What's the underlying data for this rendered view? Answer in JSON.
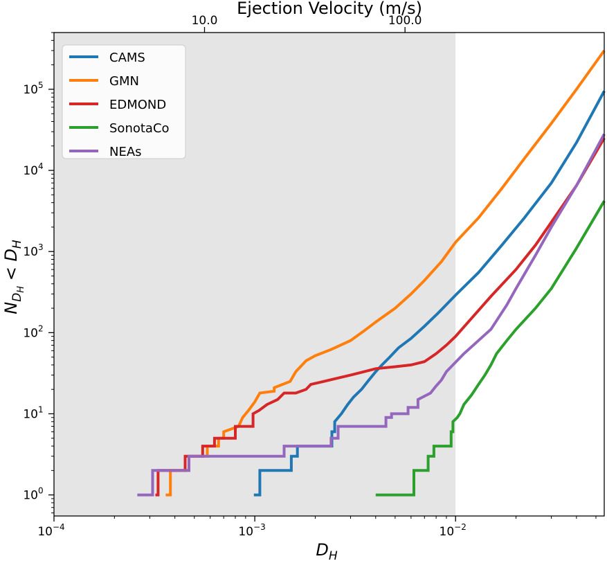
{
  "chart_data": {
    "type": "line",
    "xlabel": "D",
    "xlabel_sub": "H",
    "ylabel_main": "N",
    "ylabel_sub": "D",
    "ylabel_subsub": "H",
    "ylabel_rel": " < D",
    "ylabel_rel_sub": "H",
    "top_xlabel": "Ejection Velocity (m/s)",
    "x_scale": "log",
    "y_scale": "log",
    "xlim": [
      0.0001,
      0.055
    ],
    "ylim": [
      0.55,
      500000
    ],
    "x_ticks": [
      {
        "value": 0.0001,
        "base": "10",
        "exp": "−4"
      },
      {
        "value": 0.001,
        "base": "10",
        "exp": "−3"
      },
      {
        "value": 0.01,
        "base": "10",
        "exp": "−2"
      }
    ],
    "y_ticks": [
      {
        "value": 1,
        "base": "10",
        "exp": "0"
      },
      {
        "value": 10,
        "base": "10",
        "exp": "1"
      },
      {
        "value": 100,
        "base": "10",
        "exp": "2"
      },
      {
        "value": 1000,
        "base": "10",
        "exp": "3"
      },
      {
        "value": 10000,
        "base": "10",
        "exp": "4"
      },
      {
        "value": 100000,
        "base": "10",
        "exp": "5"
      }
    ],
    "top_ticks": [
      {
        "x_value": 0.000562,
        "label": "10.0"
      },
      {
        "x_value": 0.0056,
        "label": "100.0"
      }
    ],
    "shaded_region": {
      "x_from": 0.0001,
      "x_to": 0.01,
      "color": "#e5e5e5"
    },
    "legend_position": "upper left",
    "series": [
      {
        "name": "CAMS",
        "color": "#1f77b4",
        "points": [
          [
            0.00099,
            1
          ],
          [
            0.00106,
            1
          ],
          [
            0.00106,
            2
          ],
          [
            0.00152,
            2
          ],
          [
            0.00152,
            3
          ],
          [
            0.00163,
            3
          ],
          [
            0.00163,
            4
          ],
          [
            0.00242,
            4
          ],
          [
            0.00242,
            6
          ],
          [
            0.0025,
            6
          ],
          [
            0.0025,
            8
          ],
          [
            0.0027,
            10
          ],
          [
            0.0029,
            13
          ],
          [
            0.0031,
            16
          ],
          [
            0.0034,
            20
          ],
          [
            0.0037,
            26
          ],
          [
            0.004,
            33
          ],
          [
            0.0043,
            40
          ],
          [
            0.0047,
            50
          ],
          [
            0.0052,
            65
          ],
          [
            0.006,
            85
          ],
          [
            0.007,
            120
          ],
          [
            0.0082,
            175
          ],
          [
            0.01,
            290
          ],
          [
            0.013,
            550
          ],
          [
            0.017,
            1200
          ],
          [
            0.022,
            2600
          ],
          [
            0.03,
            7000
          ],
          [
            0.04,
            22000
          ],
          [
            0.055,
            95000
          ]
        ]
      },
      {
        "name": "GMN",
        "color": "#ff7f0e",
        "points": [
          [
            0.00036,
            1
          ],
          [
            0.00038,
            1
          ],
          [
            0.00038,
            2
          ],
          [
            0.00047,
            2
          ],
          [
            0.00047,
            3
          ],
          [
            0.00058,
            3
          ],
          [
            0.00058,
            4
          ],
          [
            0.00066,
            4
          ],
          [
            0.00066,
            5
          ],
          [
            0.0007,
            5
          ],
          [
            0.0007,
            6
          ],
          [
            0.00083,
            7
          ],
          [
            0.00087,
            9
          ],
          [
            0.00093,
            11
          ],
          [
            0.001,
            14
          ],
          [
            0.00106,
            18
          ],
          [
            0.00125,
            19
          ],
          [
            0.00125,
            21
          ],
          [
            0.0015,
            25
          ],
          [
            0.0016,
            33
          ],
          [
            0.0018,
            45
          ],
          [
            0.002,
            52
          ],
          [
            0.0024,
            62
          ],
          [
            0.003,
            80
          ],
          [
            0.0035,
            105
          ],
          [
            0.004,
            135
          ],
          [
            0.005,
            200
          ],
          [
            0.006,
            300
          ],
          [
            0.007,
            440
          ],
          [
            0.0085,
            750
          ],
          [
            0.01,
            1300
          ],
          [
            0.013,
            2600
          ],
          [
            0.017,
            6000
          ],
          [
            0.022,
            14000
          ],
          [
            0.03,
            38000
          ],
          [
            0.04,
            100000
          ],
          [
            0.055,
            300000
          ]
        ]
      },
      {
        "name": "EDMOND",
        "color": "#d62728",
        "points": [
          [
            0.00032,
            1
          ],
          [
            0.00033,
            1
          ],
          [
            0.00033,
            2
          ],
          [
            0.00045,
            2
          ],
          [
            0.00045,
            3
          ],
          [
            0.00055,
            3
          ],
          [
            0.00055,
            4
          ],
          [
            0.00063,
            4
          ],
          [
            0.00063,
            5
          ],
          [
            0.0008,
            5
          ],
          [
            0.0008,
            7
          ],
          [
            0.00098,
            7
          ],
          [
            0.00098,
            10
          ],
          [
            0.00105,
            11
          ],
          [
            0.00115,
            13
          ],
          [
            0.0013,
            15
          ],
          [
            0.0014,
            18
          ],
          [
            0.0016,
            18
          ],
          [
            0.0018,
            20
          ],
          [
            0.0019,
            23
          ],
          [
            0.0022,
            25
          ],
          [
            0.0025,
            27
          ],
          [
            0.003,
            30
          ],
          [
            0.0035,
            33
          ],
          [
            0.004,
            36
          ],
          [
            0.005,
            38
          ],
          [
            0.006,
            40
          ],
          [
            0.007,
            44
          ],
          [
            0.008,
            55
          ],
          [
            0.009,
            70
          ],
          [
            0.01,
            90
          ],
          [
            0.012,
            150
          ],
          [
            0.015,
            280
          ],
          [
            0.02,
            600
          ],
          [
            0.025,
            1200
          ],
          [
            0.03,
            2300
          ],
          [
            0.04,
            6500
          ],
          [
            0.055,
            25000
          ]
        ]
      },
      {
        "name": "SonotaCo",
        "color": "#2ca02c",
        "points": [
          [
            0.004,
            1
          ],
          [
            0.0062,
            1
          ],
          [
            0.0062,
            2
          ],
          [
            0.0073,
            2
          ],
          [
            0.0073,
            3
          ],
          [
            0.0078,
            3
          ],
          [
            0.0078,
            4
          ],
          [
            0.0095,
            4
          ],
          [
            0.0095,
            6
          ],
          [
            0.0097,
            6
          ],
          [
            0.0097,
            8
          ],
          [
            0.0102,
            9
          ],
          [
            0.0105,
            10
          ],
          [
            0.011,
            13
          ],
          [
            0.012,
            17
          ],
          [
            0.013,
            23
          ],
          [
            0.014,
            30
          ],
          [
            0.015,
            40
          ],
          [
            0.016,
            55
          ],
          [
            0.018,
            80
          ],
          [
            0.02,
            110
          ],
          [
            0.025,
            200
          ],
          [
            0.03,
            350
          ],
          [
            0.04,
            1100
          ],
          [
            0.055,
            4200
          ]
        ]
      },
      {
        "name": "NEAs",
        "color": "#9467bd",
        "points": [
          [
            0.00026,
            1
          ],
          [
            0.00031,
            1
          ],
          [
            0.00031,
            2
          ],
          [
            0.00047,
            2
          ],
          [
            0.00047,
            3
          ],
          [
            0.0014,
            3
          ],
          [
            0.0014,
            4
          ],
          [
            0.0024,
            4
          ],
          [
            0.0024,
            5
          ],
          [
            0.0026,
            5
          ],
          [
            0.0026,
            7
          ],
          [
            0.0045,
            7
          ],
          [
            0.0045,
            9
          ],
          [
            0.0048,
            9
          ],
          [
            0.0048,
            10
          ],
          [
            0.0058,
            10
          ],
          [
            0.0058,
            12
          ],
          [
            0.0065,
            12
          ],
          [
            0.0065,
            15
          ],
          [
            0.0075,
            18
          ],
          [
            0.008,
            22
          ],
          [
            0.0085,
            26
          ],
          [
            0.009,
            33
          ],
          [
            0.0097,
            40
          ],
          [
            0.011,
            55
          ],
          [
            0.013,
            80
          ],
          [
            0.015,
            110
          ],
          [
            0.018,
            220
          ],
          [
            0.02,
            350
          ],
          [
            0.025,
            900
          ],
          [
            0.03,
            2000
          ],
          [
            0.04,
            6500
          ],
          [
            0.055,
            28000
          ]
        ]
      }
    ]
  }
}
